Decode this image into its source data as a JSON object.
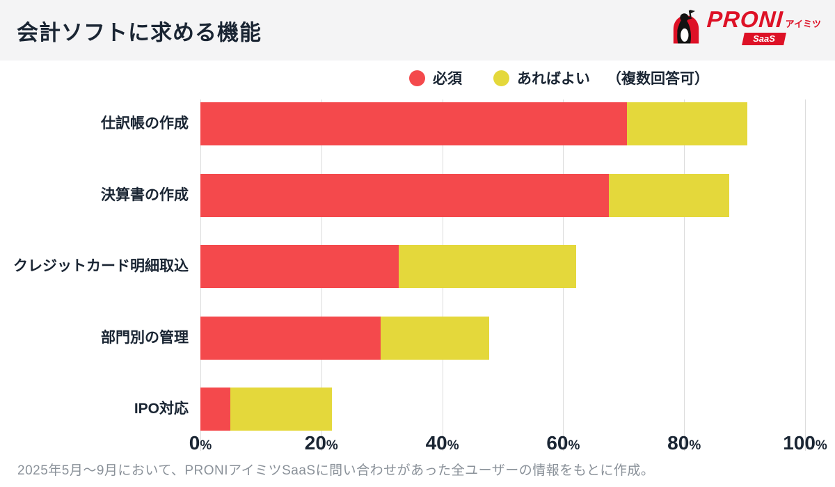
{
  "header": {
    "title": "会計ソフトに求める機能",
    "logo": {
      "brand": "PRONI",
      "sub": "アイミツ",
      "badge": "SaaS"
    }
  },
  "legend": {
    "note": "（複数回答可）"
  },
  "chart_data": {
    "type": "bar",
    "orientation": "horizontal",
    "stacked": true,
    "title": "会計ソフトに求める機能",
    "categories": [
      "仕訳帳の作成",
      "決算書の作成",
      "クレジットカード明細取込",
      "部門別の管理",
      "IPO対応"
    ],
    "series": [
      {
        "name": "必須",
        "color": "#F4494C",
        "values": [
          70.5,
          67.5,
          32.8,
          29.8,
          4.9
        ]
      },
      {
        "name": "あればよい",
        "color": "#E4D83B",
        "values": [
          19.9,
          20.0,
          29.3,
          18.0,
          16.9
        ]
      }
    ],
    "totals": [
      90.4,
      87.5,
      62.1,
      47.8,
      21.8
    ],
    "xlabel": "",
    "ylabel": "",
    "xlim": [
      0,
      100
    ],
    "x_ticks": [
      "0%",
      "20%",
      "40%",
      "60%",
      "80%",
      "100%"
    ],
    "grid": "vertical",
    "legend_position": "top-center"
  },
  "footer": {
    "note": "2025年5月〜9月において、PRONIアイミツSaaSに問い合わせがあった全ユーザーの情報をもとに作成。"
  },
  "colors": {
    "required_red": "#F4494C",
    "optional_yellow": "#E4D83B",
    "text_navy": "#1A2533",
    "gridline": "#DCDCDC",
    "header_bg": "#F4F4F5",
    "footer_gray": "#8A9199",
    "logo_red": "#DD1126",
    "background": "#FFFFFF"
  }
}
